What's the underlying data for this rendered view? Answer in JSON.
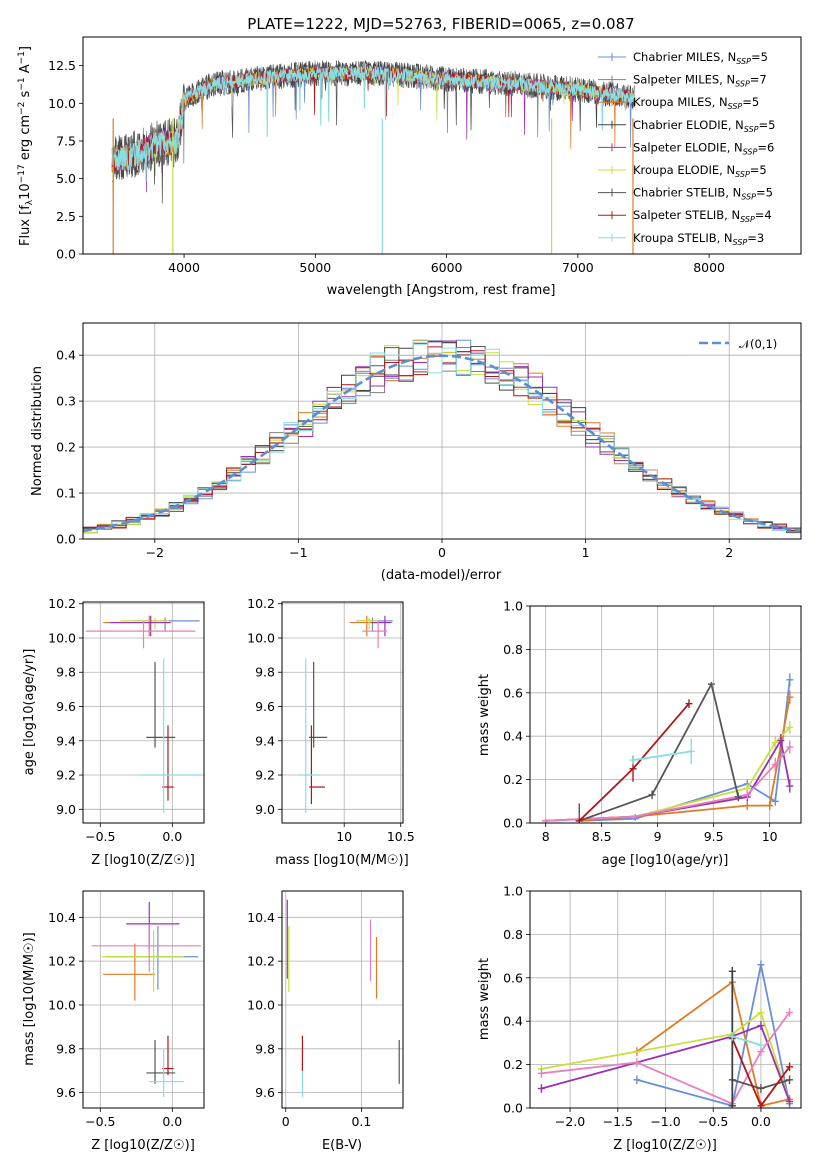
{
  "figure_title": "PLATE=1222, MJD=52763, FIBERID=0065, z=0.087",
  "chart_data": [
    {
      "id": "spectrum",
      "type": "line",
      "xlabel": "wavelength [Angstrom, rest frame]",
      "ylabel": "Flux [f_λ 10^-17 erg cm^-2 s^-1 A^-1]",
      "xlim": [
        3230,
        8700
      ],
      "ylim": [
        0,
        14.4
      ],
      "xticks": [
        4000,
        5000,
        6000,
        7000,
        8000
      ],
      "yticks": [
        0.0,
        2.5,
        5.0,
        7.5,
        10.0,
        12.5
      ],
      "grid": false,
      "legend_position": "right",
      "data_range": [
        3450,
        7430
      ],
      "data_profile": {
        "x": [
          3450,
          3600,
          3800,
          3950,
          4000,
          4200,
          4500,
          5000,
          5500,
          6000,
          6500,
          7000,
          7430
        ],
        "y": [
          6.2,
          6.5,
          7.3,
          7.5,
          10.2,
          11.2,
          11.6,
          12.0,
          12.0,
          11.6,
          11.3,
          10.9,
          10.4
        ]
      },
      "series": [
        {
          "name": "Chabrier MILES, N_SSP=5",
          "color": "#6a8fd6"
        },
        {
          "name": "Salpeter MILES, N_SSP=7",
          "color": "#808080"
        },
        {
          "name": "Kroupa MILES, N_SSP=5",
          "color": "#e07b24"
        },
        {
          "name": "Chabrier ELODIE, N_SSP=5",
          "color": "#404040"
        },
        {
          "name": "Salpeter ELODIE, N_SSP=6",
          "color": "#9b30b4"
        },
        {
          "name": "Kroupa ELODIE, N_SSP=5",
          "color": "#c7e03c"
        },
        {
          "name": "Chabrier STELIB, N_SSP=5",
          "color": "#555555"
        },
        {
          "name": "Salpeter STELIB, N_SSP=4",
          "color": "#b01818"
        },
        {
          "name": "Kroupa STELIB, N_SSP=3",
          "color": "#88dde2"
        }
      ]
    },
    {
      "id": "residual_histogram",
      "type": "line",
      "xlabel": "(data-model)/error",
      "ylabel": "Normed distribution",
      "xlim": [
        -2.5,
        2.5
      ],
      "ylim": [
        0,
        0.47
      ],
      "xticks": [
        -2,
        -1,
        0,
        1,
        2
      ],
      "yticks": [
        0.0,
        0.1,
        0.2,
        0.3,
        0.4
      ],
      "grid": true,
      "legend_position": "top-right",
      "legend_label": "𝒩(0,1)",
      "reference_curve": {
        "type": "normal",
        "mean": 0,
        "sigma": 1,
        "color": "#5b8fd4",
        "style": "dashed"
      },
      "bin_width": 0.1,
      "series_colors": [
        "#6a8fd6",
        "#808080",
        "#e07b24",
        "#404040",
        "#9b30b4",
        "#c7e03c",
        "#555555",
        "#b01818",
        "#88dde2"
      ]
    },
    {
      "id": "age_vs_Z",
      "type": "scatter",
      "xlabel": "Z [log10(Z/Z☉)]",
      "ylabel": "age [log10(age/yr)]",
      "xlim": [
        -0.62,
        0.22
      ],
      "ylim": [
        8.92,
        10.21
      ],
      "xticks": [
        -0.5,
        0.0
      ],
      "xticklabels": [
        "−0.5",
        "0.0"
      ],
      "yticks": [
        9.0,
        9.2,
        9.4,
        9.6,
        9.8,
        10.0,
        10.2
      ],
      "grid": true,
      "points": [
        {
          "x": -0.05,
          "xerr": [
            0.22,
            0.24
          ],
          "y": 10.1,
          "yerr": [
            0.06,
            0.02
          ],
          "color": "#6a8fd6"
        },
        {
          "x": -0.16,
          "xerr": [
            0.32,
            0.14
          ],
          "y": 10.09,
          "yerr": [
            0.08,
            0.04
          ],
          "color": "#e07b24"
        },
        {
          "x": -0.12,
          "xerr": [
            0.24,
            0.1
          ],
          "y": 10.1,
          "yerr": [
            0.05,
            0.02
          ],
          "color": "#c7e03c"
        },
        {
          "x": -0.15,
          "xerr": [
            0.28,
            0.14
          ],
          "y": 10.09,
          "yerr": [
            0.08,
            0.04
          ],
          "color": "#9b30b4"
        },
        {
          "x": -0.2,
          "xerr": [
            0.4,
            0.36
          ],
          "y": 10.04,
          "yerr": [
            0.1,
            0.06
          ],
          "color": "#e87fbf"
        },
        {
          "x": -0.12,
          "xerr": [
            0.06,
            0.14
          ],
          "y": 9.42,
          "yerr": [
            0.06,
            0.44
          ],
          "color": "#555555"
        },
        {
          "x": -0.03,
          "xerr": [
            0.04,
            0.04
          ],
          "y": 9.13,
          "yerr": [
            0.08,
            0.36
          ],
          "color": "#b01818"
        },
        {
          "x": -0.06,
          "xerr": [
            0.16,
            0.26
          ],
          "y": 9.2,
          "yerr": [
            0.22,
            0.68
          ],
          "color": "#88dde2"
        }
      ]
    },
    {
      "id": "age_vs_mass",
      "type": "scatter",
      "xlabel": "mass [log10(M/M☉)]",
      "ylabel": "",
      "xlim": [
        9.45,
        10.52
      ],
      "ylim": [
        8.92,
        10.21
      ],
      "xticks": [
        10.0,
        10.5
      ],
      "yticks": [
        9.0,
        9.2,
        9.4,
        9.6,
        9.8,
        10.0,
        10.2
      ],
      "grid": true,
      "points": [
        {
          "x": 10.25,
          "xerr": [
            0.14,
            0.18
          ],
          "y": 10.1,
          "yerr": [
            0.06,
            0.02
          ],
          "color": "#6a8fd6"
        },
        {
          "x": 10.2,
          "xerr": [
            0.15,
            0.1
          ],
          "y": 10.09,
          "yerr": [
            0.08,
            0.04
          ],
          "color": "#e07b24"
        },
        {
          "x": 10.22,
          "xerr": [
            0.1,
            0.08
          ],
          "y": 10.1,
          "yerr": [
            0.05,
            0.02
          ],
          "color": "#c7e03c"
        },
        {
          "x": 10.36,
          "xerr": [
            0.12,
            0.06
          ],
          "y": 10.09,
          "yerr": [
            0.08,
            0.04
          ],
          "color": "#9b30b4"
        },
        {
          "x": 10.3,
          "xerr": [
            0.14,
            0.08
          ],
          "y": 10.04,
          "yerr": [
            0.1,
            0.06
          ],
          "color": "#e87fbf"
        },
        {
          "x": 9.73,
          "xerr": [
            0.04,
            0.12
          ],
          "y": 9.42,
          "yerr": [
            0.06,
            0.44
          ],
          "color": "#555555"
        },
        {
          "x": 9.71,
          "xerr": [
            0.02,
            0.12
          ],
          "y": 9.13,
          "yerr": [
            0.1,
            0.36
          ],
          "color": "#b01818"
        },
        {
          "x": 9.66,
          "xerr": [
            0.06,
            0.12
          ],
          "y": 9.2,
          "yerr": [
            0.22,
            0.68
          ],
          "color": "#88dde2"
        }
      ]
    },
    {
      "id": "mass_weight_vs_age",
      "type": "line",
      "xlabel": "age [log10(age/yr)]",
      "ylabel": "mass weight",
      "xlim": [
        7.86,
        10.28
      ],
      "ylim": [
        0,
        1
      ],
      "xticks": [
        8.0,
        8.5,
        9.0,
        9.5,
        10.0
      ],
      "yticks": [
        0.0,
        0.2,
        0.4,
        0.6,
        0.8,
        1.0
      ],
      "grid": true,
      "series": [
        {
          "color": "#6a8fd6",
          "x": [
            8.3,
            8.8,
            9.8,
            10.05,
            10.18
          ],
          "y": [
            0.01,
            0.02,
            0.18,
            0.1,
            0.66
          ],
          "err": [
            0.008,
            0.01,
            0.02,
            0.02,
            0.03
          ]
        },
        {
          "color": "#e07b24",
          "x": [
            8.3,
            8.8,
            9.8,
            10.0,
            10.18
          ],
          "y": [
            0.01,
            0.03,
            0.08,
            0.08,
            0.58
          ],
          "err": [
            0.008,
            0.01,
            0.02,
            0.02,
            0.03
          ]
        },
        {
          "color": "#c7e03c",
          "x": [
            8.0,
            8.8,
            9.8,
            10.05,
            10.18
          ],
          "y": [
            0.01,
            0.03,
            0.16,
            0.37,
            0.44
          ],
          "err": [
            0.008,
            0.01,
            0.02,
            0.03,
            0.03
          ]
        },
        {
          "color": "#9b30b4",
          "x": [
            8.0,
            8.8,
            9.8,
            10.1,
            10.18
          ],
          "y": [
            0.01,
            0.03,
            0.12,
            0.38,
            0.17
          ],
          "err": [
            0.008,
            0.01,
            0.02,
            0.03,
            0.03
          ]
        },
        {
          "color": "#e87fbf",
          "x": [
            8.0,
            8.8,
            9.8,
            10.05,
            10.18
          ],
          "y": [
            0.01,
            0.03,
            0.13,
            0.27,
            0.35
          ],
          "err": [
            0.008,
            0.01,
            0.02,
            0.03,
            0.03
          ]
        },
        {
          "color": "#555555",
          "x": [
            8.3,
            8.95,
            9.48,
            9.72
          ],
          "y": [
            0.01,
            0.13,
            0.64,
            0.12
          ],
          "err": [
            0.08,
            0.02,
            0.01,
            0.02
          ]
        },
        {
          "color": "#b01818",
          "x": [
            8.3,
            8.78,
            9.28
          ],
          "y": [
            0.01,
            0.25,
            0.55
          ],
          "err": [
            0.01,
            0.06,
            0.02
          ]
        },
        {
          "color": "#88dde2",
          "x": [
            8.78,
            9.3
          ],
          "y": [
            0.29,
            0.33
          ],
          "err": [
            0.02,
            0.06
          ]
        }
      ]
    },
    {
      "id": "mass_vs_Z",
      "type": "scatter",
      "xlabel": "Z [log10(Z/Z☉)]",
      "ylabel": "mass [log10(M/M☉)]",
      "xlim": [
        -0.62,
        0.22
      ],
      "ylim": [
        9.53,
        10.52
      ],
      "xticks": [
        -0.5,
        0.0
      ],
      "xticklabels": [
        "−0.5",
        "0.0"
      ],
      "yticks": [
        9.6,
        9.8,
        10.0,
        10.2,
        10.4
      ],
      "grid": true,
      "points": [
        {
          "x": -0.1,
          "xerr": [
            0.36,
            0.28
          ],
          "y": 10.22,
          "yerr": [
            0.15,
            0.14
          ],
          "color": "#6a8fd6"
        },
        {
          "x": -0.26,
          "xerr": [
            0.22,
            0.14
          ],
          "y": 10.14,
          "yerr": [
            0.12,
            0.14
          ],
          "color": "#e07b24"
        },
        {
          "x": -0.13,
          "xerr": [
            0.36,
            0.21
          ],
          "y": 10.22,
          "yerr": [
            0.16,
            0.12
          ],
          "color": "#c7e03c"
        },
        {
          "x": -0.16,
          "xerr": [
            0.16,
            0.21
          ],
          "y": 10.37,
          "yerr": [
            0.12,
            0.1
          ],
          "color": "#9b30b4"
        },
        {
          "x": -0.16,
          "xerr": [
            0.4,
            0.36
          ],
          "y": 10.27,
          "yerr": [
            0.12,
            0.1
          ],
          "color": "#e87fbf"
        },
        {
          "x": -0.12,
          "xerr": [
            0.06,
            0.14
          ],
          "y": 9.69,
          "yerr": [
            0.05,
            0.15
          ],
          "color": "#555555"
        },
        {
          "x": -0.03,
          "xerr": [
            0.04,
            0.04
          ],
          "y": 9.71,
          "yerr": [
            0.03,
            0.15
          ],
          "color": "#b01818"
        },
        {
          "x": -0.06,
          "xerr": [
            0.1,
            0.14
          ],
          "y": 9.65,
          "yerr": [
            0.07,
            0.15
          ],
          "color": "#88dde2"
        }
      ]
    },
    {
      "id": "mass_vs_EBV",
      "type": "scatter",
      "xlabel": "E(B-V)",
      "ylabel": "",
      "xlim": [
        -0.005,
        0.155
      ],
      "ylim": [
        9.53,
        10.52
      ],
      "xticks": [
        0.0,
        0.1
      ],
      "yticks": [
        9.6,
        9.8,
        10.0,
        10.2,
        10.4
      ],
      "grid": true,
      "points": [
        {
          "x": 0.002,
          "y": 10.3,
          "yerr": [
            0.18,
            0.18
          ],
          "color": "#9b30b4"
        },
        {
          "x": 0.004,
          "y": 10.22,
          "yerr": [
            0.16,
            0.14
          ],
          "color": "#c7e03c"
        },
        {
          "x": 0.022,
          "y": 9.65,
          "yerr": [
            0.07,
            0.08
          ],
          "color": "#88dde2"
        },
        {
          "x": 0.022,
          "y": 9.78,
          "yerr": [
            0.08,
            0.08
          ],
          "color": "#b01818"
        },
        {
          "x": 0.112,
          "y": 10.27,
          "yerr": [
            0.16,
            0.12
          ],
          "color": "#e87fbf"
        },
        {
          "x": 0.12,
          "y": 10.17,
          "yerr": [
            0.14,
            0.14
          ],
          "color": "#e07b24"
        },
        {
          "x": 0.15,
          "y": 9.74,
          "yerr": [
            0.1,
            0.1
          ],
          "color": "#555555"
        }
      ]
    },
    {
      "id": "mass_weight_vs_Z",
      "type": "line",
      "xlabel": "Z [log10(Z/Z☉)]",
      "ylabel": "mass weight",
      "xlim": [
        -2.42,
        0.42
      ],
      "ylim": [
        0,
        1
      ],
      "xticks": [
        -2.0,
        -1.5,
        -1.0,
        -0.5,
        0.0
      ],
      "xticklabels": [
        "−2.0",
        "−1.5",
        "−1.0",
        "−0.5",
        "0.0"
      ],
      "yticks": [
        0.0,
        0.2,
        0.4,
        0.6,
        0.8,
        1.0
      ],
      "grid": true,
      "series": [
        {
          "color": "#6a8fd6",
          "x": [
            -1.3,
            -0.3,
            0.0,
            0.3
          ],
          "y": [
            0.13,
            0.01,
            0.66,
            0.02
          ]
        },
        {
          "color": "#e07b24",
          "x": [
            -1.3,
            -0.3,
            0.0,
            0.3
          ],
          "y": [
            0.26,
            0.58,
            0.01,
            0.04
          ]
        },
        {
          "color": "#c7e03c",
          "x": [
            -2.3,
            -0.3,
            0.0,
            0.3
          ],
          "y": [
            0.18,
            0.34,
            0.44,
            0.03
          ]
        },
        {
          "color": "#9b30b4",
          "x": [
            -2.3,
            -0.3,
            0.0,
            0.3
          ],
          "y": [
            0.09,
            0.33,
            0.38,
            0.03
          ]
        },
        {
          "color": "#e87fbf",
          "x": [
            -2.3,
            -1.3,
            -0.3,
            0.0,
            0.3
          ],
          "y": [
            0.16,
            0.21,
            0.02,
            0.26,
            0.44
          ]
        },
        {
          "color": "#555555",
          "x": [
            -0.3,
            0.0,
            0.3
          ],
          "y": [
            0.13,
            0.09,
            0.13
          ]
        },
        {
          "color": "#b01818",
          "x": [
            -0.3,
            0.0,
            0.3
          ],
          "y": [
            0.32,
            0.01,
            0.19
          ]
        },
        {
          "color": "#404040",
          "x": [
            -0.3,
            -0.3
          ],
          "y": [
            0.63,
            0.01
          ]
        },
        {
          "color": "#88dde2",
          "x": [
            -0.3,
            0.0
          ],
          "y": [
            0.33,
            0.29
          ]
        }
      ]
    }
  ]
}
